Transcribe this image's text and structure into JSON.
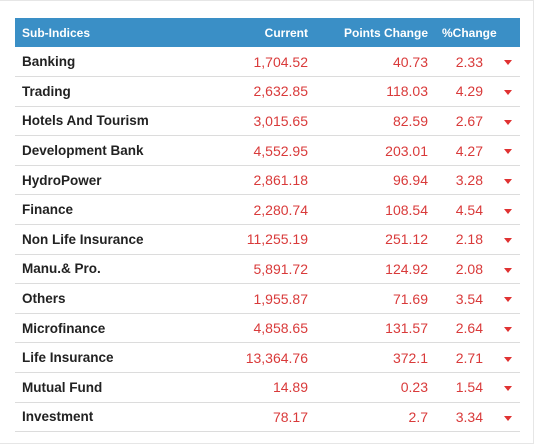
{
  "table": {
    "headers": {
      "name": "Sub-Indices",
      "current": "Current",
      "points": "Points Change",
      "percent": "%Change"
    },
    "rows": [
      {
        "name": "Banking",
        "current": "1,704.52",
        "points": "40.73",
        "percent": "2.33",
        "direction_icon": "caret-down-icon"
      },
      {
        "name": "Trading",
        "current": "2,632.85",
        "points": "118.03",
        "percent": "4.29",
        "direction_icon": "caret-down-icon"
      },
      {
        "name": "Hotels And Tourism",
        "current": "3,015.65",
        "points": "82.59",
        "percent": "2.67",
        "direction_icon": "caret-down-icon"
      },
      {
        "name": "Development Bank",
        "current": "4,552.95",
        "points": "203.01",
        "percent": "4.27",
        "direction_icon": "caret-down-icon"
      },
      {
        "name": "HydroPower",
        "current": "2,861.18",
        "points": "96.94",
        "percent": "3.28",
        "direction_icon": "caret-down-icon"
      },
      {
        "name": "Finance",
        "current": "2,280.74",
        "points": "108.54",
        "percent": "4.54",
        "direction_icon": "caret-down-icon"
      },
      {
        "name": "Non Life Insurance",
        "current": "11,255.19",
        "points": "251.12",
        "percent": "2.18",
        "direction_icon": "caret-down-icon"
      },
      {
        "name": "Manu.& Pro.",
        "current": "5,891.72",
        "points": "124.92",
        "percent": "2.08",
        "direction_icon": "caret-down-icon"
      },
      {
        "name": "Others",
        "current": "1,955.87",
        "points": "71.69",
        "percent": "3.54",
        "direction_icon": "caret-down-icon"
      },
      {
        "name": "Microfinance",
        "current": "4,858.65",
        "points": "131.57",
        "percent": "2.64",
        "direction_icon": "caret-down-icon"
      },
      {
        "name": "Life Insurance",
        "current": "13,364.76",
        "points": "372.1",
        "percent": "2.71",
        "direction_icon": "caret-down-icon"
      },
      {
        "name": "Mutual Fund",
        "current": "14.89",
        "points": "0.23",
        "percent": "1.54",
        "direction_icon": "caret-down-icon"
      },
      {
        "name": "Investment",
        "current": "78.17",
        "points": "2.7",
        "percent": "3.34",
        "direction_icon": "caret-down-icon"
      }
    ]
  },
  "colors": {
    "header_background": "#3a8fc6",
    "negative_value": "#d93a3a",
    "name_text": "#222222"
  }
}
